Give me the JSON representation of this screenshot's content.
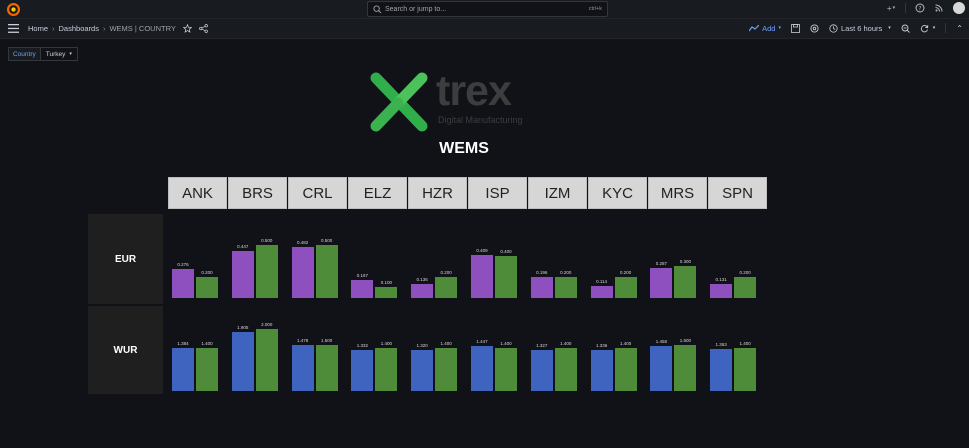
{
  "topbar": {
    "search_placeholder": "Search or jump to...",
    "search_shortcut": "ctrl+k",
    "plus_label": "+"
  },
  "navbar": {
    "breadcrumbs": [
      "Home",
      "Dashboards",
      "WEMS | COUNTRY"
    ],
    "add_label": "Add",
    "time_range": "Last 6 hours"
  },
  "variables": {
    "country_label": "Country",
    "country_value": "Turkey"
  },
  "brand": {
    "word": "trex",
    "sub": "Digital Manufacturing"
  },
  "title": "WEMS",
  "sites": [
    "ANK",
    "BRS",
    "CRL",
    "ELZ",
    "HZR",
    "ISP",
    "IZM",
    "KYC",
    "MRS",
    "SPN"
  ],
  "rows": {
    "eur_label": "EUR",
    "wur_label": "WUR"
  },
  "colors": {
    "eur_actual": "#8e4fbf",
    "wur_actual": "#3f64c0",
    "target": "#4f8c3a"
  },
  "chart_data": [
    {
      "type": "bar",
      "categories": [
        "ANK",
        "BRS",
        "CRL",
        "ELZ",
        "HZR",
        "ISP",
        "IZM",
        "KYC",
        "MRS",
        "SPN"
      ],
      "series": [
        {
          "values": [
            0.276,
            0.447,
            0.482,
            0.167,
            0.136,
            0.409,
            0.196,
            0.114,
            0.287,
            0.131
          ],
          "labels": [
            "0.276",
            "0.447",
            "0.482",
            "0.167",
            "0.136",
            "0.409",
            "0.196",
            "0.114",
            "0.287",
            "0.131"
          ]
        },
        {
          "values": [
            0.2,
            0.5,
            0.5,
            0.1,
            0.2,
            0.4,
            0.2,
            0.2,
            0.3,
            0.2
          ],
          "labels": [
            "0.200",
            "0.500",
            "0.500",
            "0.100",
            "0.200",
            "0.400",
            "0.200",
            "0.200",
            "0.300",
            "0.200"
          ]
        }
      ],
      "ylim": [
        0,
        0.55
      ]
    },
    {
      "type": "bar",
      "categories": [
        "ANK",
        "BRS",
        "CRL",
        "ELZ",
        "HZR",
        "ISP",
        "IZM",
        "KYC",
        "MRS",
        "SPN"
      ],
      "series": [
        {
          "values": [
            1.384,
            1.905,
            1.478,
            1.332,
            1.32,
            1.447,
            1.327,
            1.336,
            1.458,
            1.363
          ],
          "labels": [
            "1.384",
            "1.905",
            "1.478",
            "1.332",
            "1.320",
            "1.447",
            "1.327",
            "1.336",
            "1.458",
            "1.363"
          ]
        },
        {
          "values": [
            1.4,
            2.0,
            1.5,
            1.4,
            1.4,
            1.4,
            1.4,
            1.4,
            1.5,
            1.4
          ],
          "labels": [
            "1.400",
            "2.000",
            "1.500",
            "1.400",
            "1.400",
            "1.400",
            "1.400",
            "1.400",
            "1.500",
            "1.400"
          ]
        }
      ],
      "ylim": [
        0,
        2.2
      ]
    }
  ]
}
